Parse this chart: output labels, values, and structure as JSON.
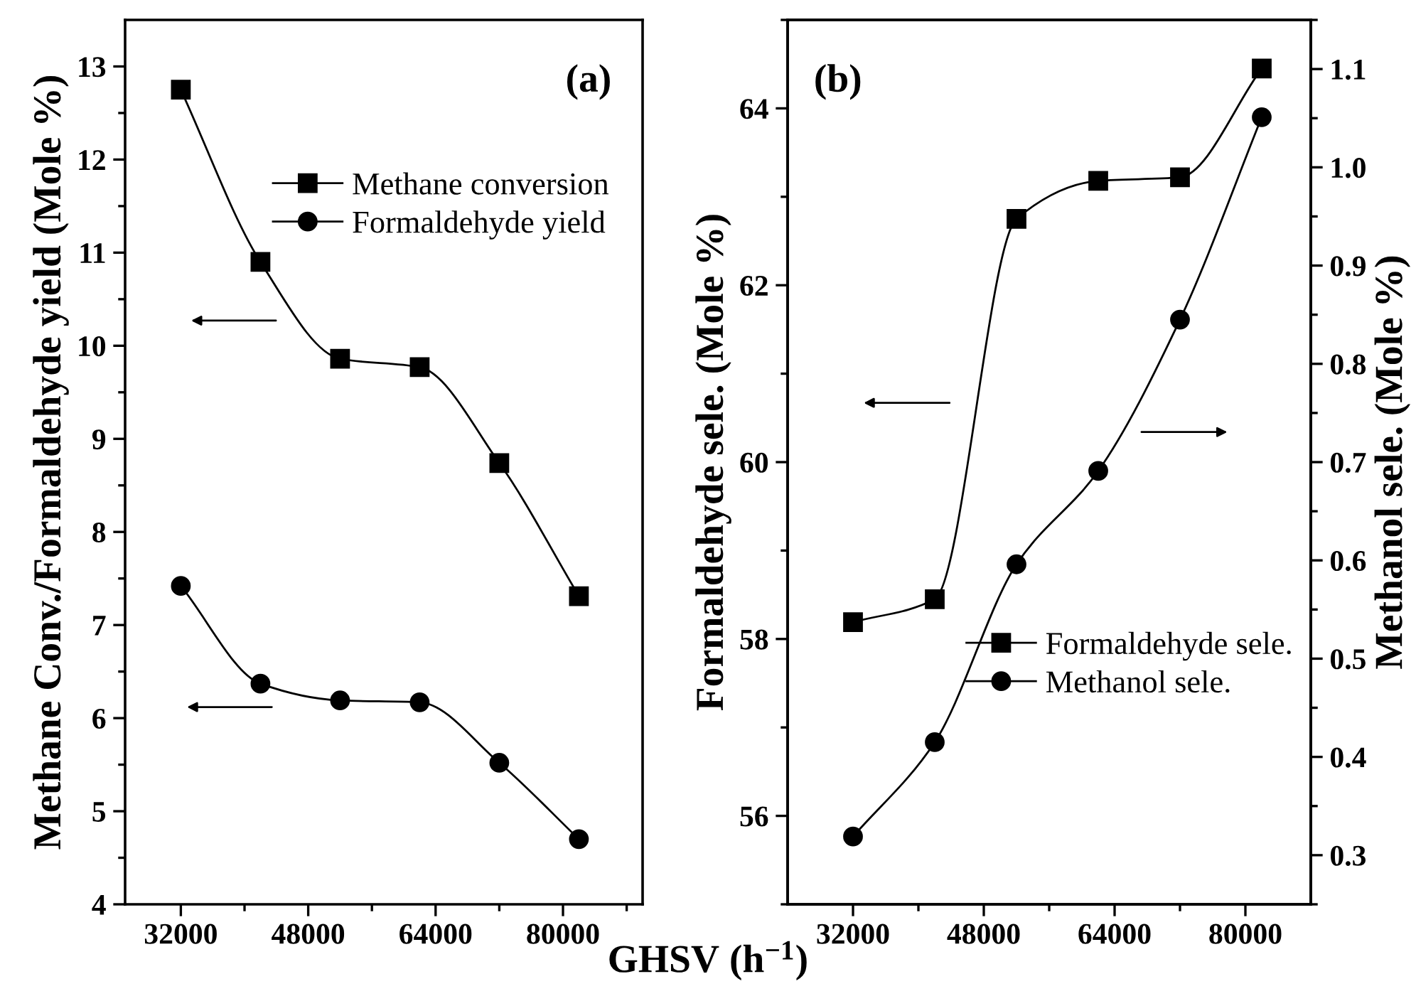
{
  "chart_data": [
    {
      "type": "line",
      "xlabel": "GHSV (h$^{−1}$)",
      "ylabel": "Methane Conv./Formaldehyde yield (Mole %)",
      "annotations": [
        "(a)"
      ],
      "x": [
        32000,
        42000,
        52000,
        62000,
        72000,
        82000
      ],
      "legend": "top right",
      "series": [
        {
          "name": "Methane conversion",
          "color": "#000000",
          "marker": "square",
          "values": [
            12.75,
            10.9,
            9.86,
            9.77,
            8.74,
            7.31
          ]
        },
        {
          "name": "Formaldehyde yield",
          "color": "#000000",
          "marker": "circle",
          "values": [
            7.42,
            6.37,
            6.19,
            6.17,
            5.52,
            4.7
          ]
        }
      ],
      "xlim": [
        25000,
        90000
      ],
      "xticks": [
        32000,
        {
          "value": 40000,
          "label": null
        },
        48000,
        {
          "value": 56000,
          "label": null
        },
        64000,
        {
          "value": 72000,
          "label": null
        },
        80000,
        {
          "value": 88000,
          "label": null
        }
      ],
      "ylim": [
        4,
        13.5
      ],
      "yticks": [
        4,
        {
          "value": 4.5,
          "label": null
        },
        5,
        {
          "value": 5.5,
          "label": null
        },
        6,
        {
          "value": 6.5,
          "label": null
        },
        7,
        {
          "value": 7.5,
          "label": null
        },
        8,
        {
          "value": 8.5,
          "label": null
        },
        9,
        {
          "value": 9.5,
          "label": null
        },
        10,
        {
          "value": 10.5,
          "label": null
        },
        11,
        {
          "value": 11.5,
          "label": null
        },
        12,
        {
          "value": 12.5,
          "label": null
        },
        13
      ],
      "grid": false
    },
    {
      "type": "line",
      "ylabel": "Formaldehyde sele. (Mole %)",
      "y2label": "Methanol sele. (Mole %)",
      "annotations": [
        "(b)"
      ],
      "x": [
        32000,
        42000,
        52000,
        62000,
        72000,
        82000
      ],
      "legend": "bottom right",
      "series": [
        {
          "name": "Formaldehyde sele.",
          "color": "#000000",
          "marker": "square",
          "values": [
            58.19,
            58.45,
            62.75,
            63.18,
            63.22,
            64.45
          ]
        },
        {
          "name": "Methanol sele.",
          "color": "#000000",
          "marker": "circle",
          "axis": "y2",
          "values": [
            0.319,
            0.415,
            0.596,
            0.691,
            0.845,
            1.051
          ]
        }
      ],
      "xlim": [
        24000,
        88000
      ],
      "xticks": [
        32000,
        {
          "value": 40000,
          "label": null
        },
        48000,
        {
          "value": 56000,
          "label": null
        },
        64000,
        {
          "value": 72000,
          "label": null
        },
        80000
      ],
      "ylim": [
        55,
        65
      ],
      "yticks": [
        {
          "value": 55,
          "label": null
        },
        56,
        {
          "value": 57,
          "label": null
        },
        58,
        {
          "value": 59,
          "label": null
        },
        60,
        {
          "value": 61,
          "label": null
        },
        62,
        {
          "value": 63,
          "label": null
        },
        64,
        {
          "value": 65,
          "label": null
        }
      ],
      "y2lim": [
        0.25,
        1.15
      ],
      "y2ticks": [
        {
          "value": 0.25,
          "label": null
        },
        0.3,
        {
          "value": 0.35,
          "label": null
        },
        0.4,
        {
          "value": 0.45,
          "label": null
        },
        0.5,
        {
          "value": 0.55,
          "label": null
        },
        0.6,
        {
          "value": 0.65,
          "label": null
        },
        0.7,
        {
          "value": 0.75,
          "label": null
        },
        0.8,
        {
          "value": 0.85,
          "label": null
        },
        0.9,
        {
          "value": 0.95,
          "label": null
        },
        {
          "value": 1.0,
          "label": "1.0"
        },
        {
          "value": 1.05,
          "label": null
        },
        1.1,
        {
          "value": 1.15,
          "label": null
        }
      ],
      "grid": false
    }
  ]
}
